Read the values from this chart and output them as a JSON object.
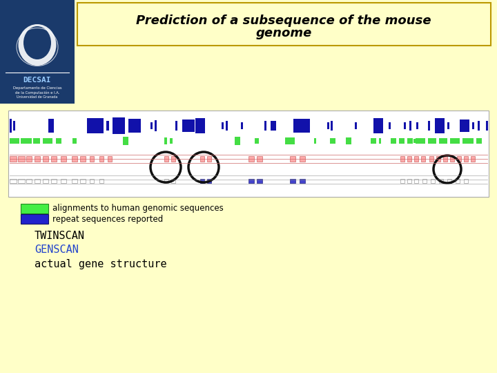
{
  "background_color": "#FFFFC8",
  "title_line1": "Prediction of a subsequence of the mouse",
  "title_line2": "genome",
  "title_fontsize": 13,
  "logo_bg": "#1A3A6B",
  "legend1_color": "#44EE44",
  "legend1_text": "alignments to human genomic sequences",
  "legend2_color": "#2222CC",
  "legend2_text": "repeat sequences reported",
  "twinscan_text": "TWINSCAN",
  "genscan_text": "GENSCAN",
  "genscan_color": "#2244CC",
  "actual_text": "actual gene structure",
  "genome_bg": "#FFFFFF",
  "blue_block_color": "#1111AA",
  "green_block_color": "#44DD44",
  "gene_line_red": "#CC6666",
  "gene_line_gray": "#888888",
  "gene_box_pink": "#FFAAAA",
  "gene_box_white": "#FFFFFF",
  "circle_color": "#111111",
  "title_box_edge": "#BB9900"
}
